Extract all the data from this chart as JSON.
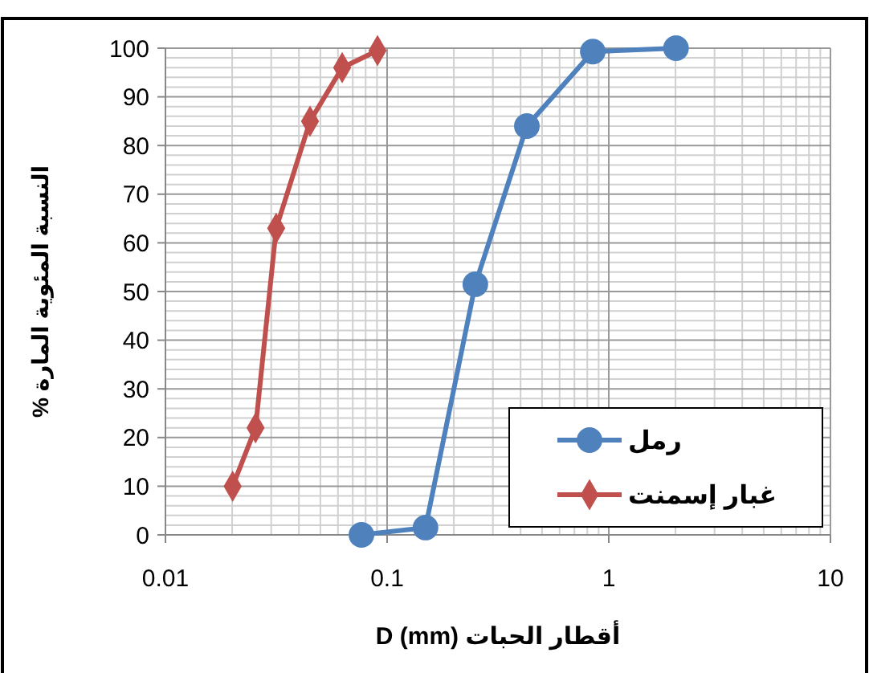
{
  "chart_data": {
    "type": "line",
    "xlabel": "أقطار الحبات D (mm)",
    "ylabel": "النسبة المئوية المارة %",
    "log": "x",
    "xlim": [
      0.01,
      10
    ],
    "xticks": [
      0.01,
      0.1,
      1,
      10
    ],
    "ylim": [
      0,
      100
    ],
    "yticks": [
      0,
      10,
      20,
      30,
      40,
      50,
      60,
      70,
      80,
      90,
      100
    ],
    "grid": true,
    "legend": "bottom right",
    "series": [
      {
        "name": "رمل",
        "color": "#4f81bd",
        "marker": "circle",
        "x": [
          0.0766,
          0.149,
          0.25,
          0.427,
          0.847,
          2.01
        ],
        "values": [
          0,
          1.5,
          51.5,
          84,
          99.3,
          100
        ]
      },
      {
        "name": "غبار إسمنت",
        "color": "#c0504d",
        "marker": "diamond",
        "x": [
          0.0201,
          0.0255,
          0.0316,
          0.0449,
          0.0627,
          0.0905
        ],
        "values": [
          10,
          22,
          63,
          85,
          96,
          99.5
        ]
      }
    ]
  }
}
